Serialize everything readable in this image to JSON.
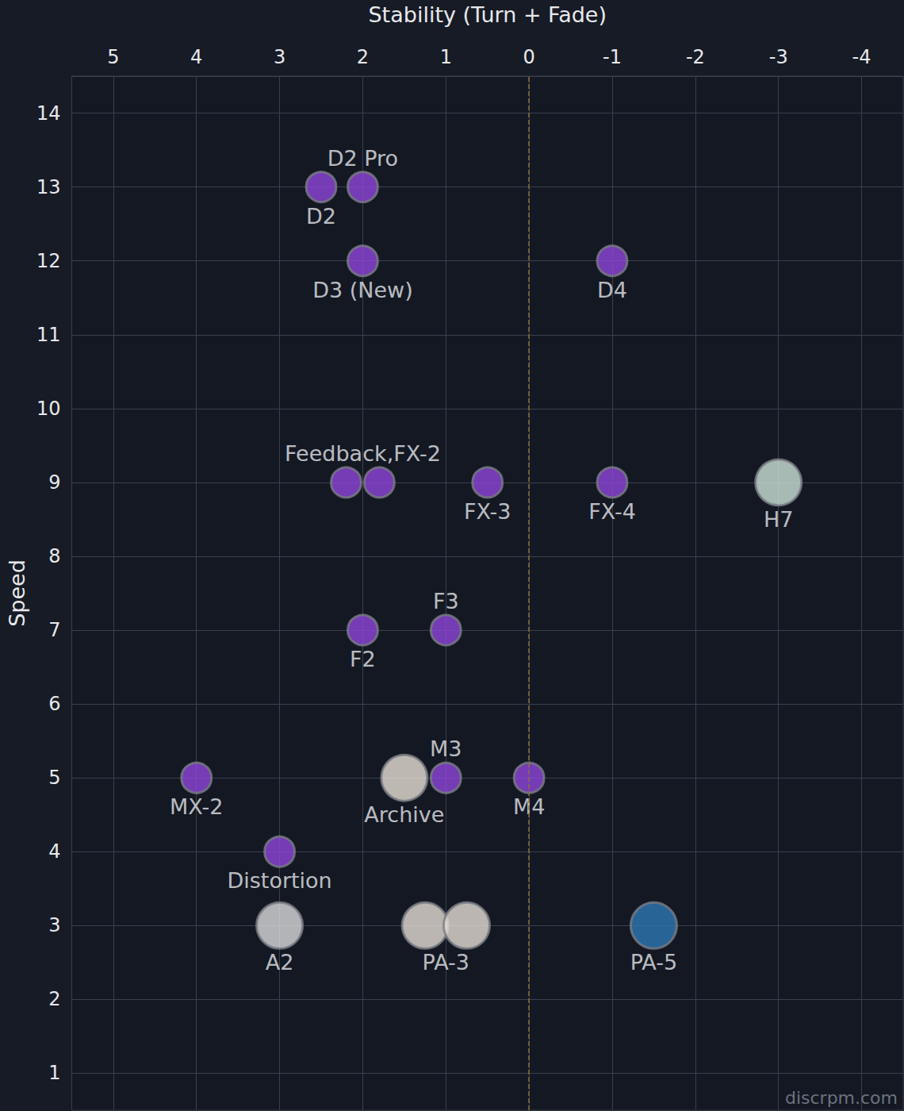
{
  "chart_data": {
    "type": "scatter",
    "x_label": "Stability (Turn + Fade)",
    "y_label": "Speed",
    "xlim": [
      5.5,
      -4.5
    ],
    "ylim": [
      0.5,
      14.5
    ],
    "xticks": [
      5,
      4,
      3,
      2,
      1,
      0,
      -1,
      -2,
      -3,
      -4
    ],
    "yticks": [
      1,
      2,
      3,
      4,
      5,
      6,
      7,
      8,
      9,
      10,
      11,
      12,
      13,
      14
    ],
    "grid": true,
    "reference_x": 0,
    "source": "discrpm.com",
    "points": [
      {
        "label": "D2",
        "x": [
          2.5
        ],
        "y": 13,
        "color": "#8f46d9",
        "marker": "dot"
      },
      {
        "label": "D2 Pro",
        "x": [
          2
        ],
        "y": 13,
        "color": "#8f46d9",
        "marker": "dot"
      },
      {
        "label": "D3 (New)",
        "x": [
          2
        ],
        "y": 12,
        "color": "#8f46d9",
        "marker": "dot"
      },
      {
        "label": "D4",
        "x": [
          -1
        ],
        "y": 12,
        "color": "#8f46d9",
        "marker": "dot"
      },
      {
        "label": "Feedback,FX-2",
        "x": [
          2.2,
          1.8
        ],
        "y": 9,
        "color": "#8f46d9",
        "marker": "dot"
      },
      {
        "label": "FX-3",
        "x": [
          0.5
        ],
        "y": 9,
        "color": "#8f46d9",
        "marker": "dot"
      },
      {
        "label": "FX-4",
        "x": [
          -1
        ],
        "y": 9,
        "color": "#8f46d9",
        "marker": "dot"
      },
      {
        "label": "H7",
        "x": [
          -3
        ],
        "y": 9,
        "color": "#cde3d8",
        "marker": "photo"
      },
      {
        "label": "F2",
        "x": [
          2
        ],
        "y": 7,
        "color": "#8f46d9",
        "marker": "dot"
      },
      {
        "label": "F3",
        "x": [
          1
        ],
        "y": 7,
        "color": "#8f46d9",
        "marker": "dot"
      },
      {
        "label": "MX-2",
        "x": [
          4
        ],
        "y": 5,
        "color": "#8f46d9",
        "marker": "dot"
      },
      {
        "label": "Archive",
        "x": [
          1.5
        ],
        "y": 5,
        "color": "#e8e2d6",
        "marker": "photo"
      },
      {
        "label": "M3",
        "x": [
          1
        ],
        "y": 5,
        "color": "#8f46d9",
        "marker": "dot"
      },
      {
        "label": "M4",
        "x": [
          0
        ],
        "y": 5,
        "color": "#8f46d9",
        "marker": "dot"
      },
      {
        "label": "Distortion",
        "x": [
          3
        ],
        "y": 4,
        "color": "#8f46d9",
        "marker": "dot"
      },
      {
        "label": "A2",
        "x": [
          3
        ],
        "y": 3,
        "color": "#dcdcdc",
        "marker": "photo"
      },
      {
        "label": "PA-3",
        "x": [
          1.25,
          0.75
        ],
        "y": 3,
        "color": "#e6dfd5",
        "marker": "photo"
      },
      {
        "label": "PA-5",
        "x": [
          -1.5
        ],
        "y": 3,
        "color": "#2f78b4",
        "marker": "photo"
      }
    ]
  }
}
